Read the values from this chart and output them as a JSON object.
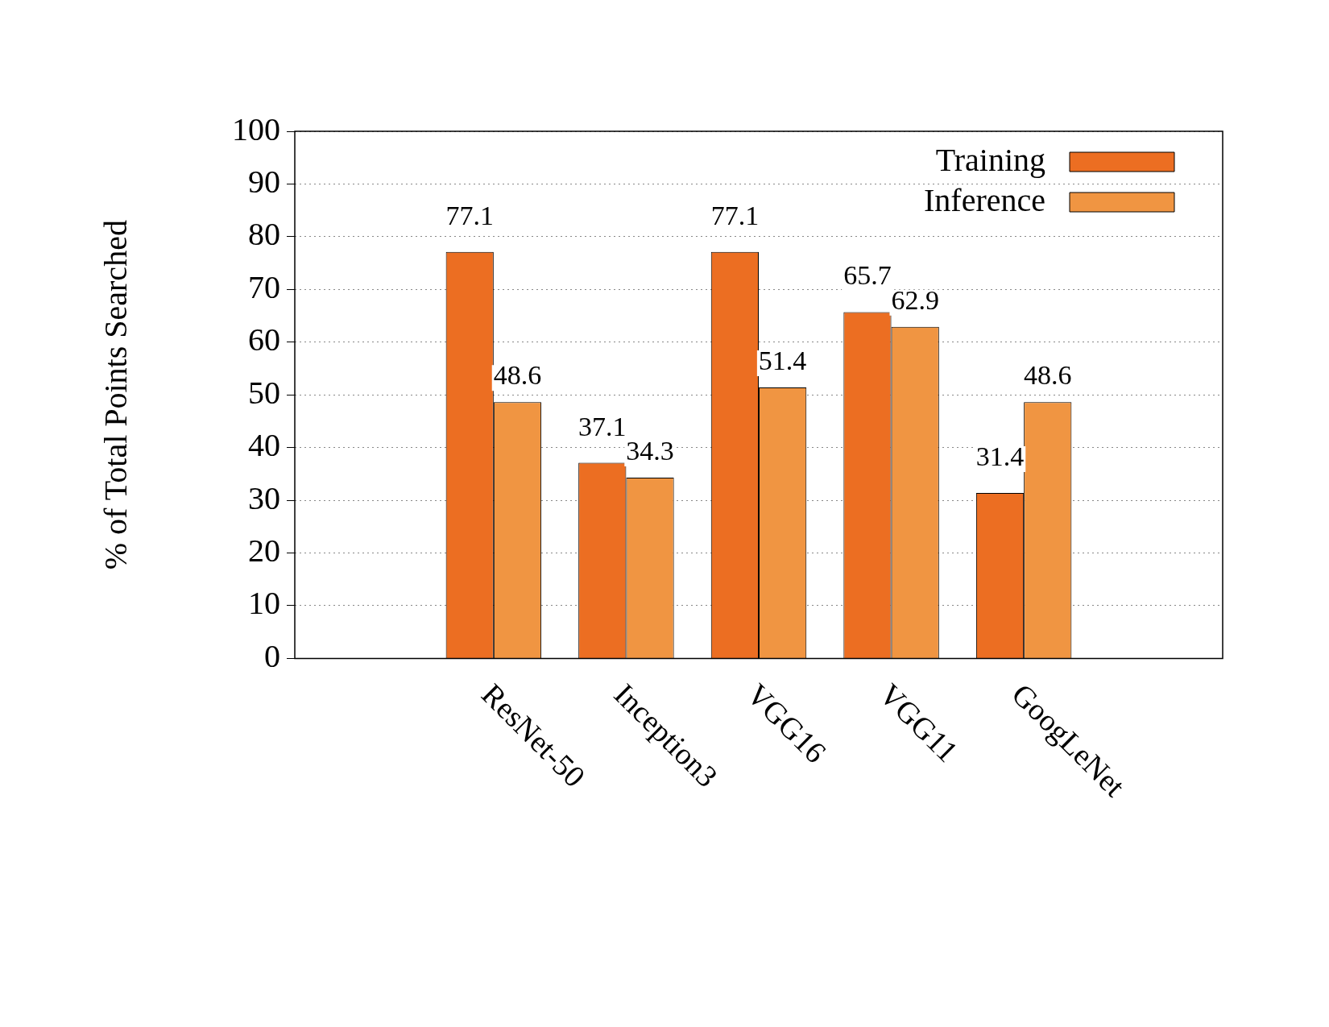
{
  "chart_data": {
    "type": "bar",
    "ylabel": "% of Total Points Searched",
    "categories": [
      null,
      "ResNet-50",
      "Inception3",
      "VGG16",
      "VGG11",
      "GoogLeNet",
      null
    ],
    "series": [
      {
        "name": "Training",
        "color": "#ec6e22",
        "values": [
          null,
          77.1,
          37.1,
          77.1,
          65.7,
          31.4,
          null
        ]
      },
      {
        "name": "Inference",
        "color": "#f09542",
        "values": [
          null,
          48.6,
          34.3,
          51.4,
          62.9,
          48.6,
          null
        ]
      }
    ],
    "ylim": [
      0,
      100
    ],
    "yticks": [
      0,
      10,
      20,
      30,
      40,
      50,
      60,
      70,
      80,
      90,
      100
    ],
    "grid": "y",
    "legend": "top right",
    "data_labels": true
  }
}
